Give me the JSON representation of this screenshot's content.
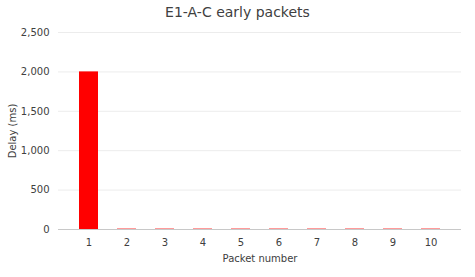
{
  "chart_data": {
    "type": "bar",
    "title": "E1-A-C early packets",
    "xlabel": "Packet number",
    "ylabel": "Delay (ms)",
    "categories": [
      1,
      2,
      3,
      4,
      5,
      6,
      7,
      8,
      9,
      10
    ],
    "values": [
      2000,
      5,
      5,
      5,
      5,
      5,
      5,
      5,
      5,
      5
    ],
    "color": "#ff0000",
    "ylim": [
      0,
      2500
    ],
    "yticks": [
      0,
      500,
      1000,
      1500,
      2000,
      2500
    ],
    "grid": true
  }
}
